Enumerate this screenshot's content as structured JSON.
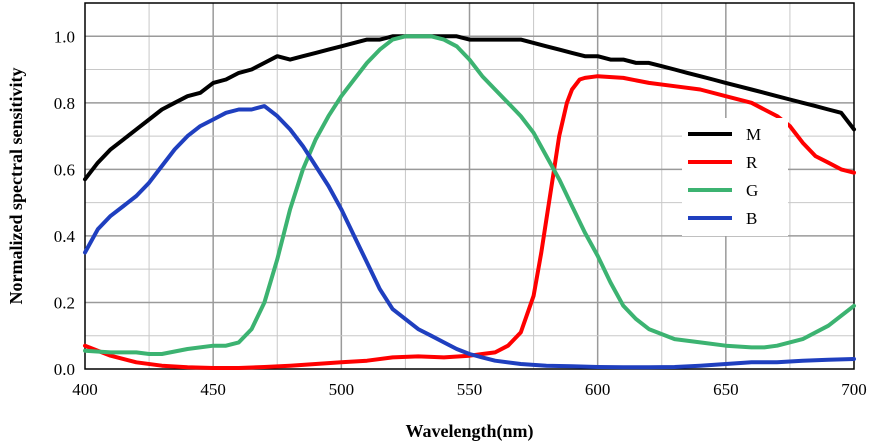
{
  "chart_data": {
    "type": "line",
    "title": "",
    "xlabel": "Wavelength(nm)",
    "ylabel": "Normalized spectral sensitivity",
    "xlim": [
      400,
      700
    ],
    "ylim": [
      0,
      1.1
    ],
    "x_ticks": [
      400,
      450,
      500,
      550,
      600,
      650,
      700
    ],
    "x_tick_labels": [
      "400",
      "450",
      "500",
      "550",
      "600",
      "650",
      "700"
    ],
    "y_ticks": [
      0,
      0.2,
      0.4,
      0.6,
      0.8,
      1.0
    ],
    "y_tick_labels": [
      "0.0",
      "0.2",
      "0.4",
      "0.6",
      "0.8",
      "1.0"
    ],
    "grid": true,
    "legend_position": "right",
    "series": [
      {
        "name": "M",
        "color": "#000000",
        "x": [
          400,
          405,
          410,
          415,
          420,
          425,
          430,
          435,
          440,
          445,
          450,
          455,
          460,
          465,
          470,
          475,
          480,
          485,
          490,
          495,
          500,
          505,
          510,
          515,
          520,
          525,
          530,
          535,
          540,
          545,
          550,
          555,
          560,
          565,
          570,
          575,
          580,
          585,
          590,
          595,
          600,
          605,
          610,
          615,
          620,
          625,
          630,
          635,
          640,
          645,
          650,
          655,
          660,
          665,
          670,
          675,
          680,
          685,
          690,
          695,
          700
        ],
        "y": [
          0.57,
          0.62,
          0.66,
          0.69,
          0.72,
          0.75,
          0.78,
          0.8,
          0.82,
          0.83,
          0.86,
          0.87,
          0.89,
          0.9,
          0.92,
          0.94,
          0.93,
          0.94,
          0.95,
          0.96,
          0.97,
          0.98,
          0.99,
          0.99,
          1.0,
          1.0,
          1.0,
          1.0,
          1.0,
          1.0,
          0.99,
          0.99,
          0.99,
          0.99,
          0.99,
          0.98,
          0.97,
          0.96,
          0.95,
          0.94,
          0.94,
          0.93,
          0.93,
          0.92,
          0.92,
          0.91,
          0.9,
          0.89,
          0.88,
          0.87,
          0.86,
          0.85,
          0.84,
          0.83,
          0.82,
          0.81,
          0.8,
          0.79,
          0.78,
          0.77,
          0.72
        ]
      },
      {
        "name": "R",
        "color": "#ff0000",
        "x": [
          400,
          410,
          420,
          430,
          440,
          450,
          460,
          470,
          480,
          490,
          500,
          510,
          520,
          530,
          540,
          550,
          555,
          560,
          565,
          570,
          575,
          578,
          580,
          583,
          585,
          588,
          590,
          593,
          595,
          600,
          610,
          620,
          630,
          640,
          650,
          660,
          665,
          670,
          675,
          680,
          685,
          690,
          695,
          700
        ],
        "y": [
          0.07,
          0.04,
          0.02,
          0.01,
          0.005,
          0.003,
          0.003,
          0.006,
          0.01,
          0.015,
          0.02,
          0.025,
          0.035,
          0.038,
          0.035,
          0.04,
          0.045,
          0.05,
          0.07,
          0.11,
          0.22,
          0.35,
          0.45,
          0.6,
          0.7,
          0.8,
          0.84,
          0.87,
          0.875,
          0.88,
          0.875,
          0.86,
          0.85,
          0.84,
          0.82,
          0.8,
          0.78,
          0.76,
          0.73,
          0.68,
          0.64,
          0.62,
          0.6,
          0.59
        ]
      },
      {
        "name": "G",
        "color": "#3cb371",
        "x": [
          400,
          410,
          420,
          425,
          430,
          440,
          450,
          455,
          460,
          465,
          470,
          475,
          480,
          485,
          490,
          495,
          500,
          505,
          510,
          515,
          520,
          525,
          530,
          535,
          540,
          545,
          550,
          555,
          560,
          565,
          570,
          575,
          580,
          585,
          590,
          595,
          600,
          605,
          610,
          615,
          620,
          630,
          640,
          650,
          660,
          665,
          670,
          680,
          690,
          700
        ],
        "y": [
          0.055,
          0.05,
          0.05,
          0.045,
          0.045,
          0.06,
          0.07,
          0.07,
          0.08,
          0.12,
          0.2,
          0.33,
          0.48,
          0.6,
          0.69,
          0.76,
          0.82,
          0.87,
          0.92,
          0.96,
          0.99,
          1.0,
          1.0,
          1.0,
          0.99,
          0.97,
          0.93,
          0.88,
          0.84,
          0.8,
          0.76,
          0.71,
          0.64,
          0.57,
          0.49,
          0.41,
          0.34,
          0.26,
          0.19,
          0.15,
          0.12,
          0.09,
          0.08,
          0.07,
          0.065,
          0.065,
          0.07,
          0.09,
          0.13,
          0.19
        ]
      },
      {
        "name": "B",
        "color": "#1f3fbf",
        "x": [
          400,
          405,
          410,
          415,
          420,
          425,
          430,
          435,
          440,
          445,
          450,
          455,
          460,
          465,
          470,
          475,
          480,
          485,
          490,
          495,
          500,
          505,
          510,
          515,
          520,
          525,
          530,
          535,
          540,
          545,
          550,
          555,
          560,
          570,
          580,
          590,
          600,
          610,
          620,
          630,
          640,
          650,
          660,
          670,
          680,
          690,
          700
        ],
        "y": [
          0.35,
          0.42,
          0.46,
          0.49,
          0.52,
          0.56,
          0.61,
          0.66,
          0.7,
          0.73,
          0.75,
          0.77,
          0.78,
          0.78,
          0.79,
          0.76,
          0.72,
          0.67,
          0.61,
          0.55,
          0.48,
          0.4,
          0.32,
          0.24,
          0.18,
          0.15,
          0.12,
          0.1,
          0.08,
          0.06,
          0.045,
          0.035,
          0.025,
          0.015,
          0.01,
          0.008,
          0.006,
          0.005,
          0.005,
          0.006,
          0.01,
          0.015,
          0.02,
          0.02,
          0.025,
          0.028,
          0.03
        ]
      }
    ]
  }
}
